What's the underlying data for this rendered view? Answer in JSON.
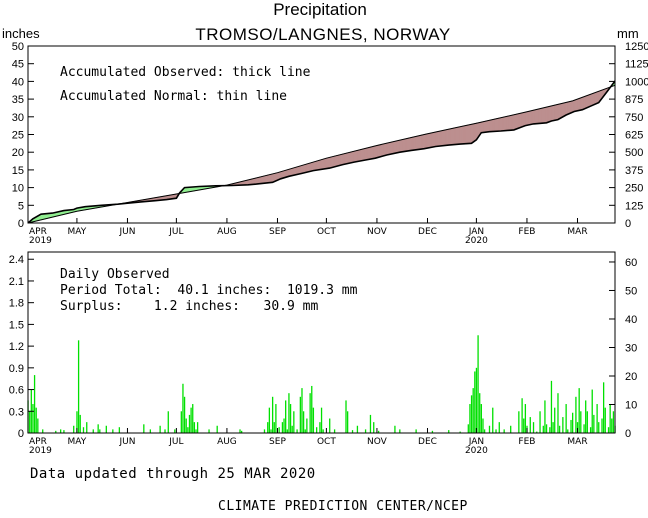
{
  "title": "Precipitation",
  "subtitle": "TROMSO/LANGNES, NORWAY",
  "updated_text": "Data updated through 25 MAR 2020",
  "credit_text": "CLIMATE PREDICTION CENTER/NCEP",
  "colors": {
    "surplus": "#90ee90",
    "deficit": "#bc8f8f",
    "bar": "#00e000",
    "line": "#000000"
  },
  "chart_data": [
    {
      "type": "area",
      "name": "accumulated",
      "ylabel_left": "inches",
      "ylabel_right": "mm",
      "annotations": [
        "Accumulated Observed: thick line",
        "Accumulated Normal: thin line"
      ],
      "x_ticks": [
        "APR",
        "MAY",
        "JUN",
        "JUL",
        "AUG",
        "SEP",
        "OCT",
        "NOV",
        "DEC",
        "JAN",
        "FEB",
        "MAR"
      ],
      "x_year_labels": [
        {
          "under": "APR",
          "text": "2019"
        },
        {
          "under": "JAN",
          "text": "2020"
        }
      ],
      "ylim": [
        0,
        50
      ],
      "y_ticks_left": [
        "0",
        "5",
        "10",
        "15",
        "20",
        "25",
        "30",
        "35",
        "40",
        "45",
        "50"
      ],
      "ylim_right": [
        0,
        1250
      ],
      "y_ticks_right": [
        "0",
        "125",
        "250",
        "375",
        "500",
        "625",
        "750",
        "875",
        "1000",
        "1125",
        "1250"
      ],
      "x_day_range": [
        0,
        360
      ],
      "observed": [
        [
          0,
          0
        ],
        [
          3,
          1.2
        ],
        [
          8,
          2.5
        ],
        [
          15,
          2.8
        ],
        [
          22,
          3.5
        ],
        [
          28,
          3.8
        ],
        [
          30,
          4.2
        ],
        [
          35,
          4.6
        ],
        [
          45,
          5.0
        ],
        [
          55,
          5.3
        ],
        [
          61,
          5.6
        ],
        [
          70,
          6.0
        ],
        [
          78,
          6.3
        ],
        [
          85,
          6.6
        ],
        [
          91,
          7.0
        ],
        [
          93,
          8.5
        ],
        [
          96,
          10.0
        ],
        [
          105,
          10.3
        ],
        [
          115,
          10.5
        ],
        [
          125,
          10.6
        ],
        [
          135,
          10.8
        ],
        [
          140,
          11.0
        ],
        [
          150,
          11.5
        ],
        [
          155,
          12.5
        ],
        [
          160,
          13.2
        ],
        [
          168,
          14.0
        ],
        [
          175,
          14.8
        ],
        [
          185,
          15.5
        ],
        [
          193,
          16.5
        ],
        [
          200,
          17.2
        ],
        [
          207,
          17.8
        ],
        [
          213,
          18.3
        ],
        [
          220,
          19.2
        ],
        [
          228,
          20.0
        ],
        [
          235,
          20.5
        ],
        [
          243,
          21.0
        ],
        [
          250,
          21.6
        ],
        [
          258,
          22.0
        ],
        [
          265,
          22.3
        ],
        [
          272,
          22.5
        ],
        [
          275,
          23.5
        ],
        [
          278,
          25.5
        ],
        [
          283,
          25.8
        ],
        [
          290,
          26.0
        ],
        [
          298,
          26.3
        ],
        [
          305,
          27.5
        ],
        [
          310,
          28.0
        ],
        [
          318,
          28.3
        ],
        [
          321,
          28.8
        ],
        [
          325,
          29.2
        ],
        [
          330,
          30.5
        ],
        [
          335,
          31.5
        ],
        [
          340,
          32.0
        ],
        [
          345,
          33.0
        ],
        [
          350,
          34.0
        ],
        [
          355,
          37.0
        ],
        [
          360,
          40.1
        ]
      ],
      "normal": [
        [
          0,
          0
        ],
        [
          30,
          3.3
        ],
        [
          61,
          5.8
        ],
        [
          91,
          8.2
        ],
        [
          122,
          10.7
        ],
        [
          153,
          14.2
        ],
        [
          183,
          18.3
        ],
        [
          214,
          21.9
        ],
        [
          244,
          25.1
        ],
        [
          275,
          28.2
        ],
        [
          306,
          31.4
        ],
        [
          334,
          34.5
        ],
        [
          360,
          38.9
        ]
      ],
      "legend_position": "top-left"
    },
    {
      "type": "bar",
      "name": "daily",
      "ylabel_left": "",
      "ylabel_right": "",
      "annotations": [
        "Daily Observed",
        "Period Total:  40.1 inches:  1019.3 mm",
        "Surplus:    1.2 inches:   30.9 mm"
      ],
      "x_ticks": [
        "APR",
        "MAY",
        "JUN",
        "JUL",
        "AUG",
        "SEP",
        "OCT",
        "NOV",
        "DEC",
        "JAN",
        "FEB",
        "MAR"
      ],
      "x_year_labels": [
        {
          "under": "APR",
          "text": "2019"
        },
        {
          "under": "JAN",
          "text": "2020"
        }
      ],
      "ylim": [
        0,
        2.5
      ],
      "y_ticks_left": [
        "0",
        "0.3",
        "0.6",
        "0.9",
        "1.2",
        "1.5",
        "1.8",
        "2.1",
        "2.4"
      ],
      "ylim_right": [
        0,
        63.5
      ],
      "y_ticks_right": [
        "0",
        "10",
        "20",
        "30",
        "40",
        "50",
        "60"
      ],
      "x_day_range": [
        0,
        360
      ],
      "values": [
        [
          0,
          0.45
        ],
        [
          1,
          0.3
        ],
        [
          2,
          0.6
        ],
        [
          3,
          0.4
        ],
        [
          4,
          0.8
        ],
        [
          5,
          0.35
        ],
        [
          6,
          0.2
        ],
        [
          9,
          0.05
        ],
        [
          17,
          0.03
        ],
        [
          20,
          0.05
        ],
        [
          22,
          0.04
        ],
        [
          28,
          0.1
        ],
        [
          30,
          0.3
        ],
        [
          31,
          1.28
        ],
        [
          32,
          0.25
        ],
        [
          34,
          0.08
        ],
        [
          36,
          0.15
        ],
        [
          40,
          0.05
        ],
        [
          43,
          0.12
        ],
        [
          44,
          0.05
        ],
        [
          48,
          0.1
        ],
        [
          52,
          0.05
        ],
        [
          56,
          0.08
        ],
        [
          71,
          0.12
        ],
        [
          75,
          0.05
        ],
        [
          81,
          0.1
        ],
        [
          84,
          0.05
        ],
        [
          86,
          0.3
        ],
        [
          90,
          0.05
        ],
        [
          94,
          0.3
        ],
        [
          95,
          0.68
        ],
        [
          96,
          0.5
        ],
        [
          97,
          0.2
        ],
        [
          98,
          0.08
        ],
        [
          99,
          0.25
        ],
        [
          100,
          0.35
        ],
        [
          101,
          0.4
        ],
        [
          102,
          0.15
        ],
        [
          103,
          0.05
        ],
        [
          104,
          0.15
        ],
        [
          111,
          0.05
        ],
        [
          116,
          0.1
        ],
        [
          130,
          0.05
        ],
        [
          131,
          0.03
        ],
        [
          145,
          0.05
        ],
        [
          147,
          0.15
        ],
        [
          148,
          0.35
        ],
        [
          149,
          0.05
        ],
        [
          150,
          0.5
        ],
        [
          151,
          0.15
        ],
        [
          152,
          0.4
        ],
        [
          154,
          0.08
        ],
        [
          156,
          0.15
        ],
        [
          157,
          0.2
        ],
        [
          158,
          0.45
        ],
        [
          159,
          0.05
        ],
        [
          160,
          0.55
        ],
        [
          161,
          0.4
        ],
        [
          162,
          0.1
        ],
        [
          163,
          0.3
        ],
        [
          165,
          0.05
        ],
        [
          167,
          0.5
        ],
        [
          168,
          0.62
        ],
        [
          169,
          0.3
        ],
        [
          170,
          0.05
        ],
        [
          171,
          0.2
        ],
        [
          173,
          0.55
        ],
        [
          174,
          0.65
        ],
        [
          175,
          0.35
        ],
        [
          177,
          0.08
        ],
        [
          179,
          0.15
        ],
        [
          180,
          0.35
        ],
        [
          181,
          0.05
        ],
        [
          185,
          0.2
        ],
        [
          188,
          0.05
        ],
        [
          195,
          0.45
        ],
        [
          196,
          0.3
        ],
        [
          199,
          0.04
        ],
        [
          202,
          0.1
        ],
        [
          207,
          0.05
        ],
        [
          210,
          0.25
        ],
        [
          212,
          0.15
        ],
        [
          215,
          0.03
        ],
        [
          225,
          0.1
        ],
        [
          228,
          0.05
        ],
        [
          238,
          0.05
        ],
        [
          248,
          0.03
        ],
        [
          258,
          0.04
        ],
        [
          265,
          0.02
        ],
        [
          270,
          0.12
        ],
        [
          271,
          0.4
        ],
        [
          272,
          0.52
        ],
        [
          273,
          0.62
        ],
        [
          274,
          0.85
        ],
        [
          275,
          0.9
        ],
        [
          276,
          1.35
        ],
        [
          277,
          0.55
        ],
        [
          278,
          0.4
        ],
        [
          279,
          0.2
        ],
        [
          280,
          0.05
        ],
        [
          283,
          0.1
        ],
        [
          285,
          0.35
        ],
        [
          287,
          0.05
        ],
        [
          289,
          0.15
        ],
        [
          292,
          0.05
        ],
        [
          296,
          0.1
        ],
        [
          301,
          0.3
        ],
        [
          303,
          0.48
        ],
        [
          304,
          0.2
        ],
        [
          305,
          0.4
        ],
        [
          306,
          0.1
        ],
        [
          308,
          0.22
        ],
        [
          310,
          0.15
        ],
        [
          312,
          0.02
        ],
        [
          314,
          0.3
        ],
        [
          316,
          0.1
        ],
        [
          317,
          0.45
        ],
        [
          318,
          0.12
        ],
        [
          320,
          0.08
        ],
        [
          321,
          0.72
        ],
        [
          322,
          0.15
        ],
        [
          323,
          0.35
        ],
        [
          325,
          0.55
        ],
        [
          326,
          0.1
        ],
        [
          328,
          0.22
        ],
        [
          330,
          0.4
        ],
        [
          331,
          0.05
        ],
        [
          333,
          0.18
        ],
        [
          334,
          0.28
        ],
        [
          336,
          0.5
        ],
        [
          337,
          0.15
        ],
        [
          338,
          0.62
        ],
        [
          339,
          0.3
        ],
        [
          341,
          0.12
        ],
        [
          342,
          0.45
        ],
        [
          343,
          0.3
        ],
        [
          345,
          0.08
        ],
        [
          346,
          0.6
        ],
        [
          347,
          0.25
        ],
        [
          349,
          0.4
        ],
        [
          350,
          0.15
        ],
        [
          352,
          0.2
        ],
        [
          353,
          0.7
        ],
        [
          354,
          0.35
        ],
        [
          356,
          0.08
        ],
        [
          357,
          0.4
        ],
        [
          358,
          0.2
        ],
        [
          359,
          0.3
        ],
        [
          360,
          0.1
        ]
      ]
    }
  ]
}
